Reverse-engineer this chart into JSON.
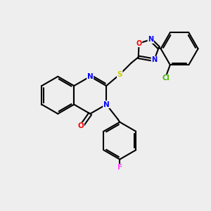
{
  "background_color": "#eeeeee",
  "bond_color": "#000000",
  "atom_colors": {
    "N": "#0000FF",
    "O": "#FF0000",
    "S": "#CCCC00",
    "F": "#FF44FF",
    "Cl": "#44BB00",
    "C": "#000000"
  },
  "figsize": [
    3.0,
    3.0
  ],
  "dpi": 100
}
